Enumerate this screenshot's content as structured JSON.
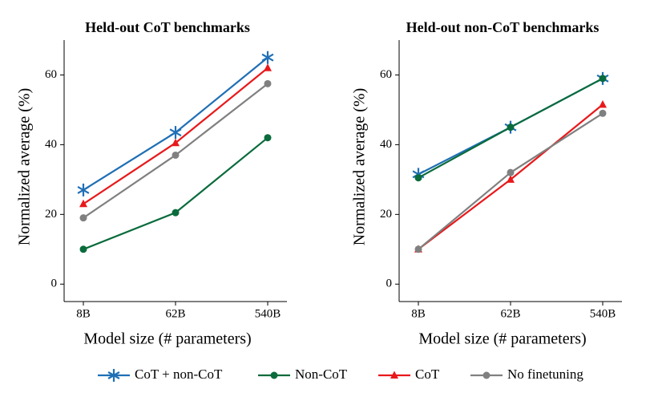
{
  "chart_data": [
    {
      "type": "line",
      "title": "Held-out CoT benchmarks",
      "x_label": "Model size (# parameters)",
      "y_label": "Normalized average (%)",
      "categories": [
        "8B",
        "62B",
        "540B"
      ],
      "ylim": [
        -5,
        70
      ],
      "yticks": [
        0,
        20,
        40,
        60
      ],
      "series": [
        {
          "name": "CoT + non-CoT",
          "color": "#1f6fb5",
          "marker": "star",
          "values": [
            27,
            43.5,
            65
          ]
        },
        {
          "name": "Non-CoT",
          "color": "#0a6b3c",
          "marker": "circle",
          "values": [
            10,
            20.5,
            42
          ]
        },
        {
          "name": "CoT",
          "color": "#e8191b",
          "marker": "triangle",
          "values": [
            23,
            40.5,
            62
          ]
        },
        {
          "name": "No finetuning",
          "color": "#808080",
          "marker": "circle",
          "values": [
            19,
            37,
            57.5
          ]
        }
      ]
    },
    {
      "type": "line",
      "title": "Held-out non-CoT benchmarks",
      "x_label": "Model size (# parameters)",
      "y_label": "Normalized average (%)",
      "categories": [
        "8B",
        "62B",
        "540B"
      ],
      "ylim": [
        -5,
        70
      ],
      "yticks": [
        0,
        20,
        40,
        60
      ],
      "series": [
        {
          "name": "CoT + non-CoT",
          "color": "#1f6fb5",
          "marker": "star",
          "values": [
            31.5,
            45,
            59
          ]
        },
        {
          "name": "Non-CoT",
          "color": "#0a6b3c",
          "marker": "circle",
          "values": [
            30.5,
            45,
            59
          ]
        },
        {
          "name": "CoT",
          "color": "#e8191b",
          "marker": "triangle",
          "values": [
            10,
            30,
            51.5
          ]
        },
        {
          "name": "No finetuning",
          "color": "#808080",
          "marker": "circle",
          "values": [
            10,
            32,
            49
          ]
        }
      ]
    }
  ]
}
